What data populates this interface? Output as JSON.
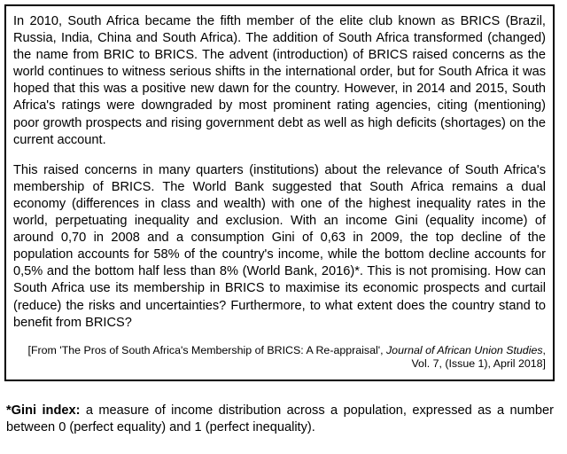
{
  "source": {
    "paragraph_1": "In 2010, South Africa became the fifth member of the elite club known as BRICS (Brazil, Russia, India, China and South Africa). The addition of South Africa transformed (changed) the name from BRIC to BRICS. The advent (introduction) of BRICS raised concerns as the world continues to witness serious shifts in the international order, but for South Africa it was hoped that this was a positive new dawn for the country. However, in 2014 and 2015, South Africa's ratings were downgraded by most prominent rating agencies, citing (mentioning) poor growth prospects and rising government debt as well as high deficits (shortages) on the current account.",
    "paragraph_2": "This raised concerns in many quarters (institutions) about the relevance of South Africa's membership of BRICS. The World Bank suggested that South Africa remains a dual economy (differences in class and wealth) with one of the highest inequality rates in the world, perpetuating inequality and exclusion. With an income Gini (equality income) of around 0,70 in 2008 and a consumption Gini of 0,63 in 2009, the top decline of the population accounts for 58% of the country's income, while the bottom decline accounts for 0,5% and the bottom half less than 8% (World Bank, 2016)*. This is not promising. How can South Africa use its membership in BRICS to maximise its economic prospects and curtail (reduce) the risks and uncertainties? Furthermore, to what extent does the country stand to benefit from BRICS?",
    "citation": {
      "prefix": "[From 'The Pros of South Africa's Membership of BRICS: A Re-appraisal', ",
      "journal": "Journal of African Union Studies",
      "suffix": ", Vol. 7, (Issue 1), April 2018]"
    }
  },
  "glossary": {
    "term": "*Gini index:",
    "definition": " a measure of income distribution across a population, expressed as a number between 0 (perfect equality) and 1 (perfect inequality)."
  }
}
